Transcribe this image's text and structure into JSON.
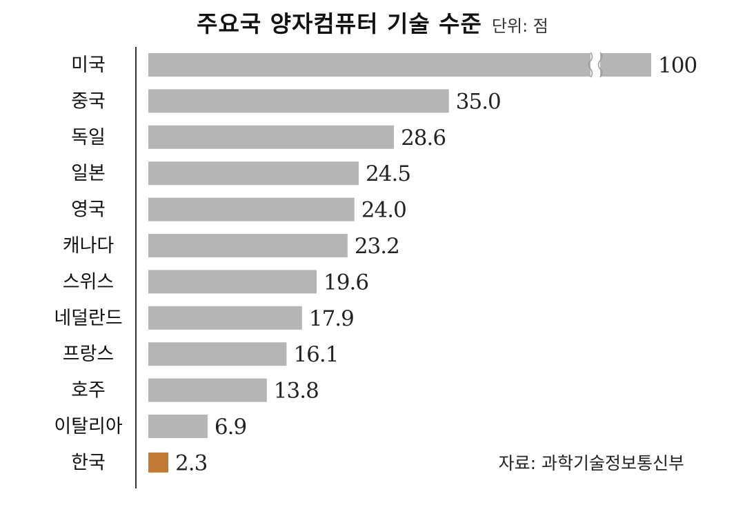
{
  "chart_data": {
    "type": "bar",
    "orientation": "horizontal",
    "title": "주요국 양자컴퓨터 기술 수준",
    "unit": "단위: 점",
    "source": "자료: 과학기술정보통신부",
    "categories": [
      "미국",
      "중국",
      "독일",
      "일본",
      "영국",
      "캐나다",
      "스위스",
      "네덜란드",
      "프랑스",
      "호주",
      "이탈리아",
      "한국"
    ],
    "values": [
      100,
      35.0,
      28.6,
      24.5,
      24.0,
      23.2,
      19.6,
      17.9,
      16.1,
      13.8,
      6.9,
      2.3
    ],
    "value_labels": [
      "100",
      "35.0",
      "28.6",
      "24.5",
      "24.0",
      "23.2",
      "19.6",
      "17.9",
      "16.1",
      "13.8",
      "6.9",
      "2.3"
    ],
    "highlight_category": "한국",
    "axis_break_on": "미국",
    "colors": {
      "bar": "#b5b5b5",
      "highlight": "#c07a35",
      "text": "#111111",
      "axis": "#333333"
    },
    "grid": false,
    "legend": "none"
  }
}
